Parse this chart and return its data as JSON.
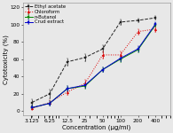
{
  "x": [
    3.125,
    6.25,
    12.5,
    25,
    50,
    100,
    200,
    400
  ],
  "ethyl_acetate": [
    10,
    20,
    57,
    62,
    72,
    103,
    105,
    108
  ],
  "ethyl_acetate_err": [
    4,
    5,
    4,
    4,
    4,
    3,
    2,
    2
  ],
  "chloroform": [
    3,
    10,
    22,
    32,
    65,
    65,
    92,
    95
  ],
  "chloroform_err": [
    2,
    3,
    3,
    4,
    4,
    4,
    3,
    3
  ],
  "n_butanol": [
    4,
    9,
    26,
    29,
    48,
    60,
    71,
    100
  ],
  "n_butanol_err": [
    2,
    3,
    3,
    3,
    3,
    3,
    3,
    2
  ],
  "crud_extract": [
    4,
    9,
    26,
    30,
    48,
    61,
    72,
    101
  ],
  "crud_extract_err": [
    2,
    3,
    3,
    3,
    3,
    3,
    3,
    2
  ],
  "colors": {
    "ethyl_acetate": "#222222",
    "chloroform": "#dd0000",
    "n_butanol": "#008800",
    "crud_extract": "#0000cc"
  },
  "markers": {
    "ethyl_acetate": "s",
    "chloroform": "^",
    "n_butanol": "s",
    "crud_extract": "s"
  },
  "linestyles": {
    "ethyl_acetate": "--",
    "chloroform": ":",
    "n_butanol": "-",
    "crud_extract": "-"
  },
  "ylabel": "Cytotoxicity (%)",
  "xlabel": "Concentration (μg/ml)",
  "ylim": [
    -5,
    125
  ],
  "yticks": [
    0,
    20,
    40,
    60,
    80,
    100,
    120
  ],
  "bg_color": "#e8e8e8",
  "axis_fontsize": 5.0,
  "tick_fontsize": 4.2,
  "legend_fontsize": 3.8
}
